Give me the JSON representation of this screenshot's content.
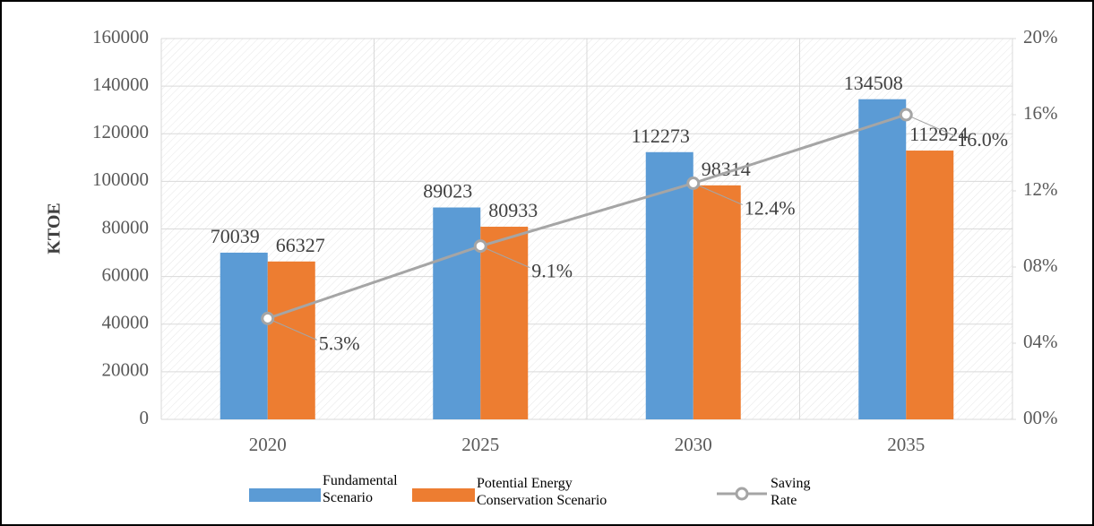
{
  "chart_data": {
    "type": "bar",
    "categories": [
      "2020",
      "2025",
      "2030",
      "2035"
    ],
    "ylabel": "KTOE",
    "ylim": [
      0,
      160000
    ],
    "yticks": [
      0,
      20000,
      40000,
      60000,
      80000,
      100000,
      120000,
      140000,
      160000
    ],
    "y2lim": [
      0,
      20
    ],
    "y2ticks": [
      {
        "value": 0,
        "label": "00%"
      },
      {
        "value": 4,
        "label": "04%"
      },
      {
        "value": 8,
        "label": "08%"
      },
      {
        "value": 12,
        "label": "12%"
      },
      {
        "value": 16,
        "label": "16%"
      },
      {
        "value": 20,
        "label": "20%"
      }
    ],
    "grid": true,
    "series": [
      {
        "name": "Fundamental Scenario",
        "color": "#5b9bd5",
        "values": [
          70039,
          89023,
          112273,
          134508
        ]
      },
      {
        "name": "Potential Energy Conservation Scenario",
        "color": "#ed7d31",
        "values": [
          66327,
          80933,
          98314,
          112924
        ]
      },
      {
        "name": "Saving Rate",
        "color": "#a5a5a5",
        "type": "line",
        "axis": "y2",
        "values": [
          5.3,
          9.1,
          12.4,
          16.0
        ],
        "value_labels": [
          "5.3%",
          "9.1%",
          "12.4%",
          "16.0%"
        ]
      }
    ]
  }
}
